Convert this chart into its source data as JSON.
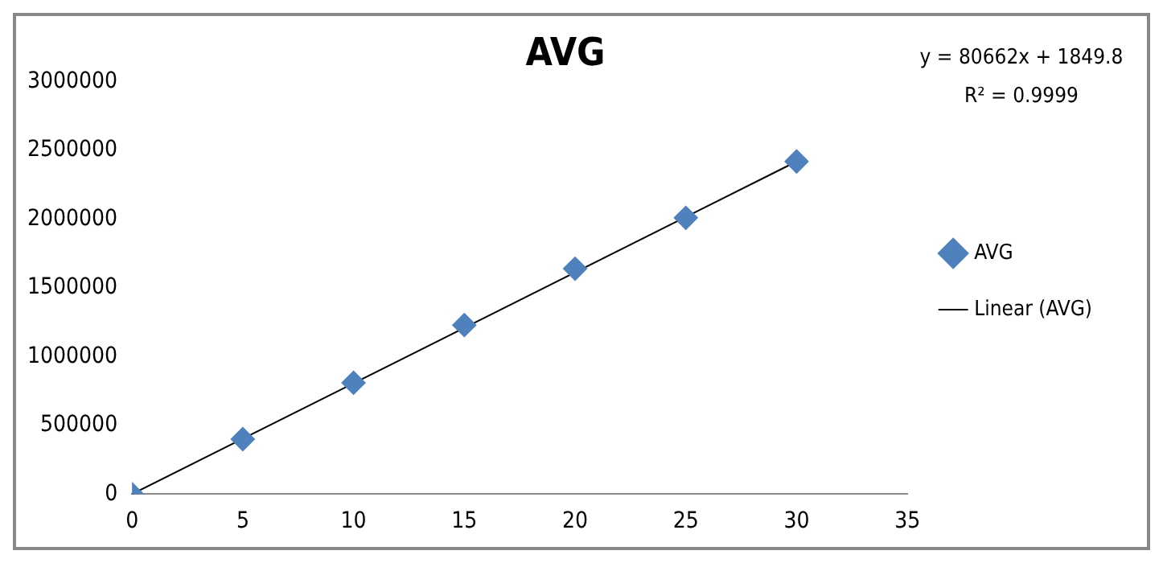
{
  "chart_data": {
    "type": "scatter",
    "title": "AVG",
    "x": [
      0,
      5,
      10,
      15,
      20,
      25,
      30
    ],
    "series": [
      {
        "name": "AVG",
        "color": "#4f81bd",
        "marker": "diamond",
        "values": [
          0,
          400000,
          810000,
          1230000,
          1640000,
          2010000,
          2420000
        ]
      },
      {
        "name": "Linear (AVG)",
        "type": "line",
        "color": "#000000",
        "marker": "none",
        "line_style": "solid",
        "x": [
          0,
          30
        ],
        "values": [
          0,
          2420000
        ]
      }
    ],
    "xlim": [
      0,
      35
    ],
    "xticks": [
      0,
      5,
      10,
      15,
      20,
      25,
      30,
      35
    ],
    "ylim": [
      0,
      3000000
    ],
    "yticks": [
      0,
      500000,
      1000000,
      1500000,
      2000000,
      2500000,
      3000000
    ],
    "grid": false,
    "legend": "right",
    "annotations": [
      "y = 80662x + 1849.8",
      "R² = 0.9999"
    ]
  }
}
